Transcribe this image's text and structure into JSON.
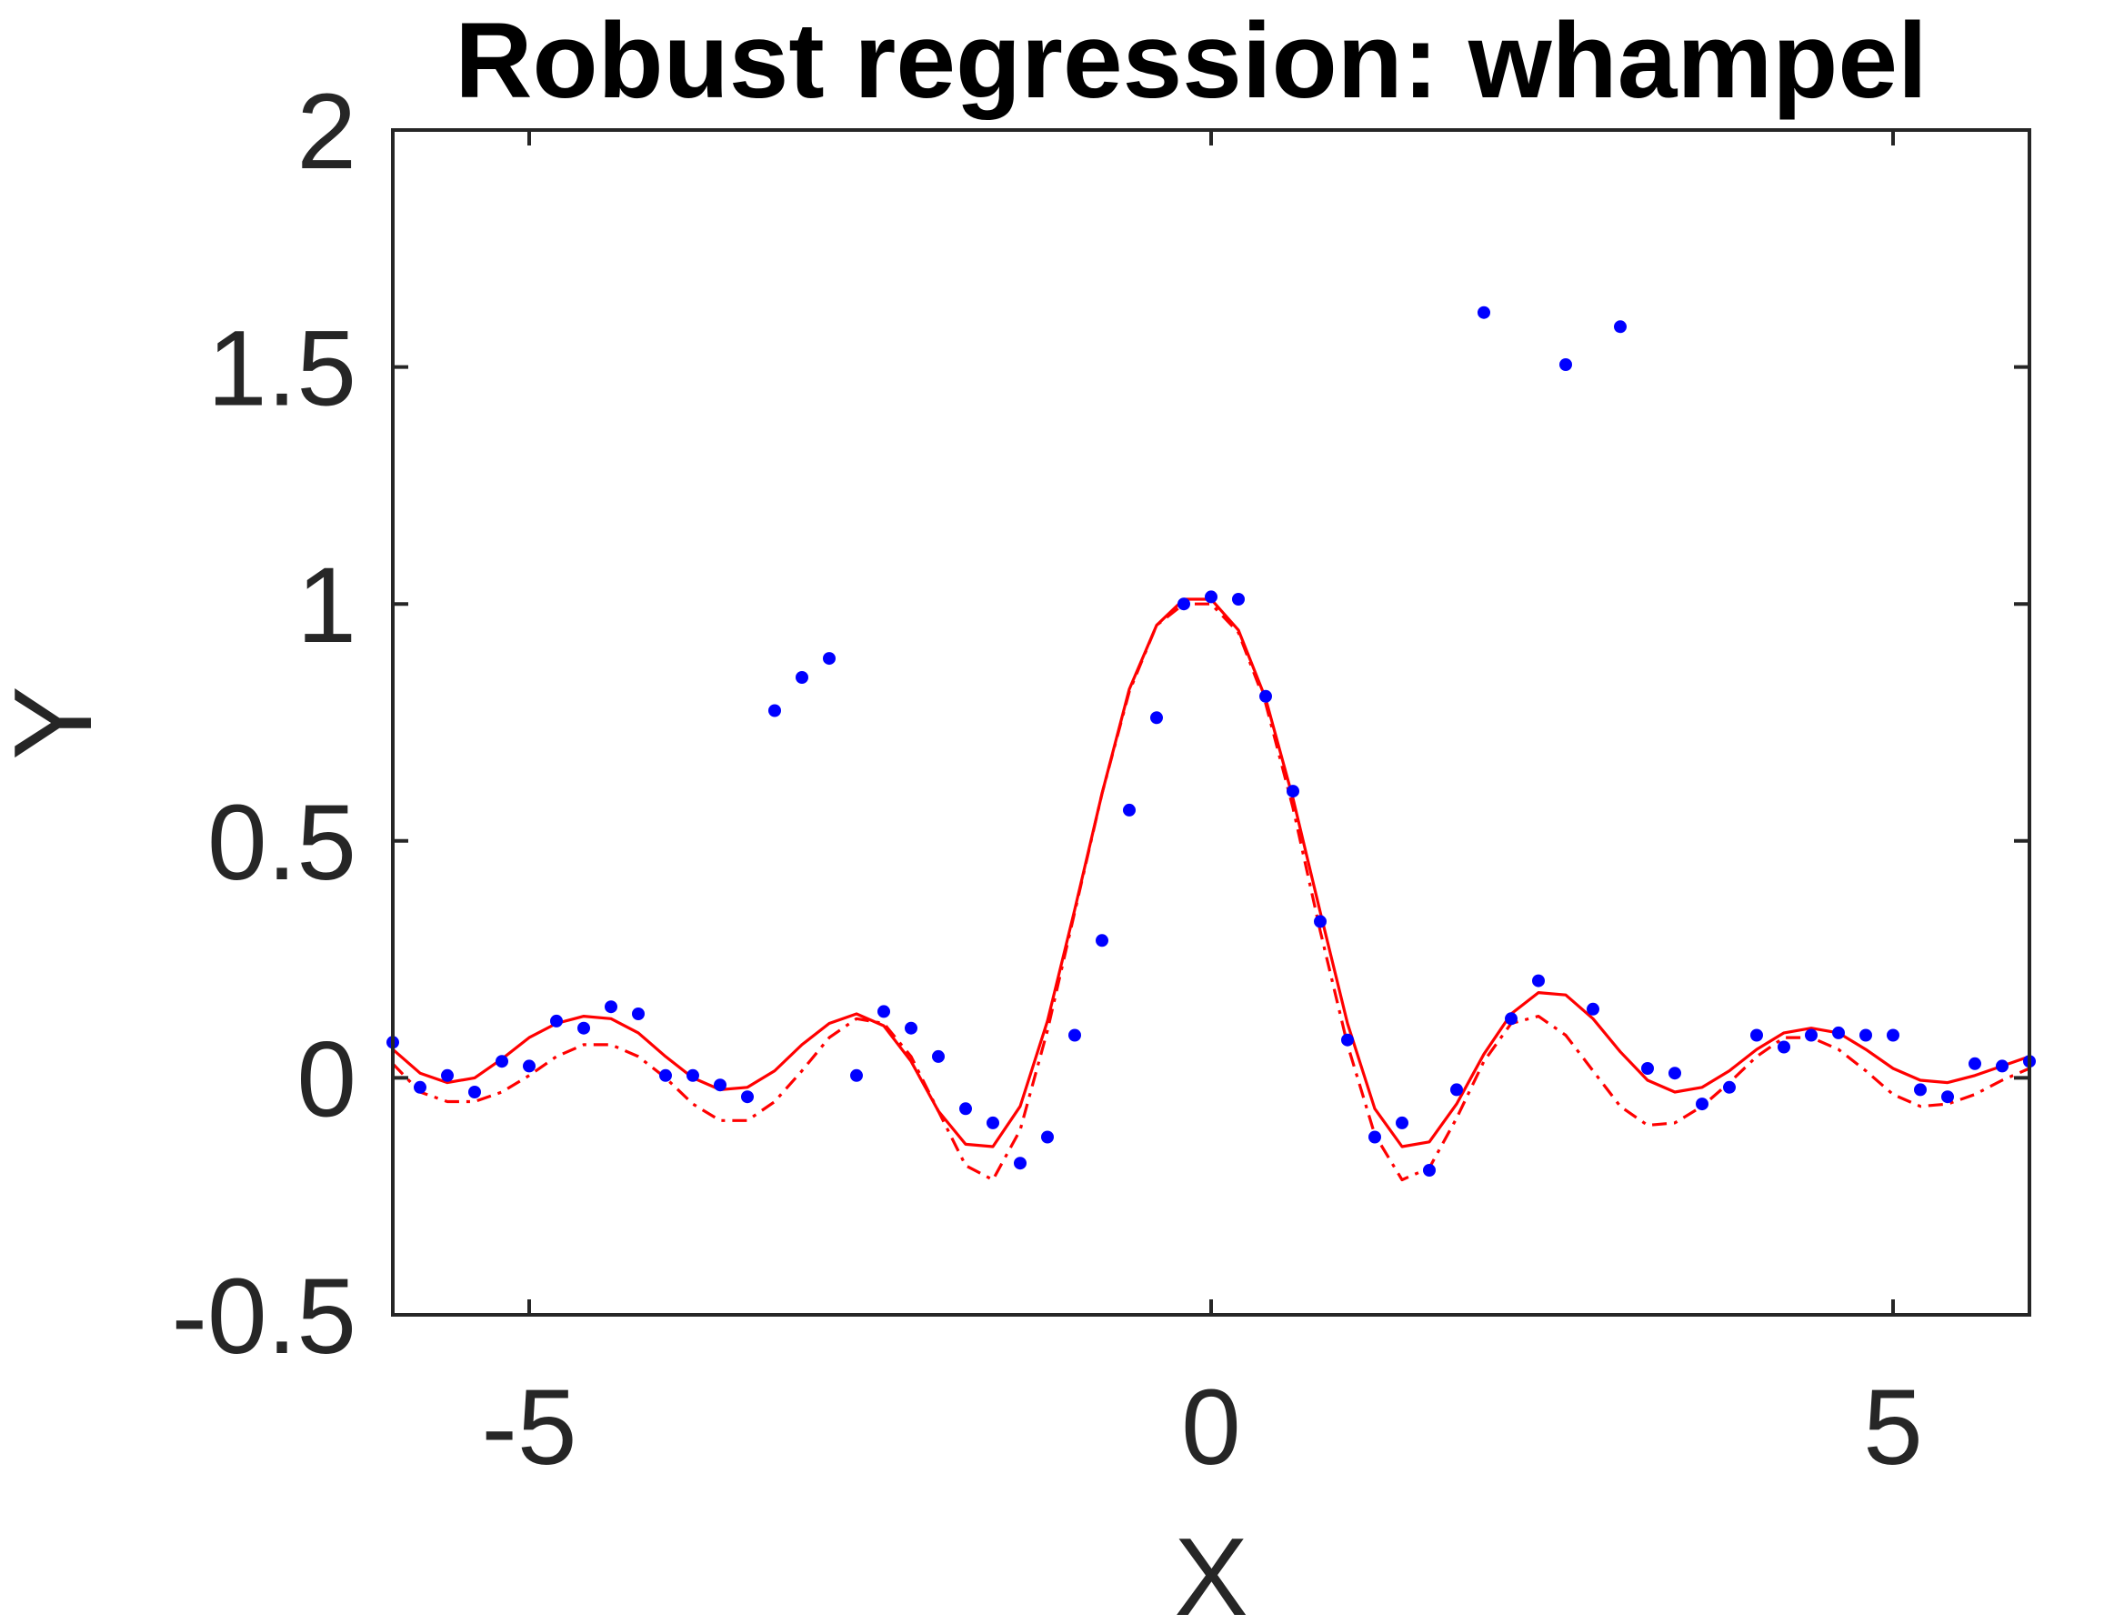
{
  "chart_data": {
    "type": "scatter",
    "title": "Robust regression: whampel",
    "xlabel": "X",
    "ylabel": "Y",
    "xlim": [
      -6,
      6
    ],
    "ylim": [
      -0.5,
      2
    ],
    "xticks": [
      -5,
      0,
      5
    ],
    "xtick_labels": [
      "-5",
      "0",
      "5"
    ],
    "yticks": [
      -0.5,
      0,
      0.5,
      1,
      1.5,
      2
    ],
    "ytick_labels": [
      "-0.5",
      "0",
      "0.5",
      "1",
      "1.5",
      "2"
    ],
    "grid": false,
    "colors": {
      "points": "#0000ff",
      "fit": "#ff0000",
      "axes": "#262626"
    },
    "series": [
      {
        "kind": "points",
        "x": [
          -6.0,
          -5.8,
          -5.6,
          -5.4,
          -5.2,
          -5.0,
          -4.8,
          -4.6,
          -4.4,
          -4.2,
          -4.0,
          -3.8,
          -3.6,
          -3.4,
          -3.2,
          -3.0,
          -2.8,
          -2.6,
          -2.4,
          -2.2,
          -2.0,
          -1.8,
          -1.6,
          -1.4,
          -1.2,
          -1.0,
          -0.8,
          -0.6,
          -0.4,
          -0.2,
          0.0,
          0.2,
          0.4,
          0.6,
          0.8,
          1.0,
          1.2,
          1.4,
          1.6,
          1.8,
          2.0,
          2.2,
          2.4,
          2.6,
          2.8,
          3.0,
          3.2,
          3.4,
          3.6,
          3.8,
          4.0,
          4.2,
          4.4,
          4.6,
          4.8,
          5.0,
          5.2,
          5.4,
          5.6,
          5.8,
          6.0
        ],
        "y": [
          0.075,
          -0.02,
          0.005,
          -0.03,
          0.035,
          0.025,
          0.12,
          0.105,
          0.15,
          0.135,
          0.005,
          0.005,
          -0.015,
          -0.04,
          0.775,
          0.845,
          0.885,
          0.005,
          0.14,
          0.105,
          0.045,
          -0.065,
          -0.095,
          -0.18,
          -0.125,
          0.09,
          0.29,
          0.565,
          0.76,
          1.0,
          1.015,
          1.01,
          0.805,
          0.605,
          0.33,
          0.08,
          -0.125,
          -0.095,
          -0.195,
          -0.025,
          1.615,
          0.125,
          0.205,
          1.505,
          0.145,
          1.585,
          0.02,
          0.01,
          -0.055,
          -0.02,
          0.09,
          0.065,
          0.09,
          0.095,
          0.09,
          0.09,
          -0.025,
          -0.04,
          0.03,
          0.025,
          0.035
        ]
      },
      {
        "kind": "line",
        "style": "solid",
        "x": [
          -6.0,
          -5.8,
          -5.6,
          -5.4,
          -5.2,
          -5.0,
          -4.8,
          -4.6,
          -4.4,
          -4.2,
          -4.0,
          -3.8,
          -3.6,
          -3.4,
          -3.2,
          -3.0,
          -2.8,
          -2.6,
          -2.4,
          -2.2,
          -2.0,
          -1.8,
          -1.6,
          -1.4,
          -1.2,
          -1.0,
          -0.8,
          -0.6,
          -0.4,
          -0.2,
          0.0,
          0.2,
          0.4,
          0.6,
          0.8,
          1.0,
          1.2,
          1.4,
          1.6,
          1.8,
          2.0,
          2.2,
          2.4,
          2.6,
          2.8,
          3.0,
          3.2,
          3.4,
          3.6,
          3.8,
          4.0,
          4.2,
          4.4,
          4.6,
          4.8,
          5.0,
          5.2,
          5.4,
          5.6,
          5.8,
          6.0
        ],
        "y": [
          0.06,
          0.01,
          -0.01,
          0.0,
          0.04,
          0.085,
          0.115,
          0.13,
          0.125,
          0.095,
          0.045,
          0.0,
          -0.025,
          -0.02,
          0.015,
          0.07,
          0.115,
          0.135,
          0.11,
          0.035,
          -0.07,
          -0.14,
          -0.145,
          -0.06,
          0.12,
          0.355,
          0.6,
          0.82,
          0.955,
          1.01,
          1.01,
          0.945,
          0.8,
          0.59,
          0.35,
          0.115,
          -0.065,
          -0.145,
          -0.135,
          -0.055,
          0.05,
          0.135,
          0.18,
          0.175,
          0.125,
          0.055,
          -0.005,
          -0.03,
          -0.02,
          0.015,
          0.06,
          0.095,
          0.105,
          0.095,
          0.06,
          0.02,
          -0.005,
          -0.01,
          0.005,
          0.025,
          0.045
        ]
      },
      {
        "kind": "line",
        "style": "dashdot",
        "x": [
          -6.0,
          -5.8,
          -5.6,
          -5.4,
          -5.2,
          -5.0,
          -4.8,
          -4.6,
          -4.4,
          -4.2,
          -4.0,
          -3.8,
          -3.6,
          -3.4,
          -3.2,
          -3.0,
          -2.8,
          -2.6,
          -2.4,
          -2.2,
          -2.0,
          -1.8,
          -1.6,
          -1.4,
          -1.2,
          -1.0,
          -0.8,
          -0.6,
          -0.4,
          -0.2,
          0.0,
          0.2,
          0.4,
          0.6,
          0.8,
          1.0,
          1.2,
          1.4,
          1.6,
          1.8,
          2.0,
          2.2,
          2.4,
          2.6,
          2.8,
          3.0,
          3.2,
          3.4,
          3.6,
          3.8,
          4.0,
          4.2,
          4.4,
          4.6,
          4.8,
          5.0,
          5.2,
          5.4,
          5.6,
          5.8,
          6.0
        ],
        "y": [
          0.03,
          -0.03,
          -0.05,
          -0.05,
          -0.03,
          0.005,
          0.045,
          0.07,
          0.07,
          0.045,
          0.0,
          -0.055,
          -0.09,
          -0.09,
          -0.05,
          0.015,
          0.085,
          0.125,
          0.115,
          0.045,
          -0.07,
          -0.185,
          -0.215,
          -0.11,
          0.1,
          0.35,
          0.6,
          0.815,
          0.955,
          1.0,
          1.0,
          0.94,
          0.79,
          0.57,
          0.31,
          0.07,
          -0.12,
          -0.215,
          -0.19,
          -0.085,
          0.035,
          0.115,
          0.13,
          0.09,
          0.015,
          -0.06,
          -0.1,
          -0.095,
          -0.06,
          -0.01,
          0.045,
          0.085,
          0.085,
          0.06,
          0.015,
          -0.035,
          -0.06,
          -0.055,
          -0.035,
          -0.005,
          0.02
        ]
      }
    ]
  }
}
